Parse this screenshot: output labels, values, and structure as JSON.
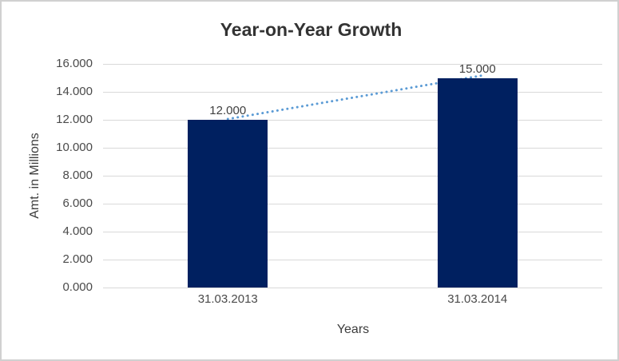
{
  "chart_data": {
    "type": "bar",
    "title": "Year-on-Year Growth",
    "xlabel": "Years",
    "ylabel": "Amt. in Millions",
    "categories": [
      "31.03.2013",
      "31.03.2014"
    ],
    "values": [
      12,
      15
    ],
    "data_labels": [
      "12.000",
      "15.000"
    ],
    "yticks": [
      {
        "value": 0,
        "label": "0.000"
      },
      {
        "value": 2,
        "label": "2.000"
      },
      {
        "value": 4,
        "label": "4.000"
      },
      {
        "value": 6,
        "label": "6.000"
      },
      {
        "value": 8,
        "label": "8.000"
      },
      {
        "value": 10,
        "label": "10.000"
      },
      {
        "value": 12,
        "label": "12.000"
      },
      {
        "value": 14,
        "label": "14.000"
      },
      {
        "value": 16,
        "label": "16.000"
      }
    ],
    "ylim": [
      0,
      16
    ],
    "grid": "horizontal",
    "legend": "none",
    "trendline": {
      "style": "dotted",
      "from_value": 12,
      "to_value": 15
    },
    "colors": {
      "bar": "#002060",
      "trend": "#5b9bd5",
      "gridline": "#d9d9d9",
      "title_text": "#333333",
      "axis_text": "#4a4a4a",
      "frame_border": "#d0d0d0",
      "background": "#ffffff"
    }
  }
}
